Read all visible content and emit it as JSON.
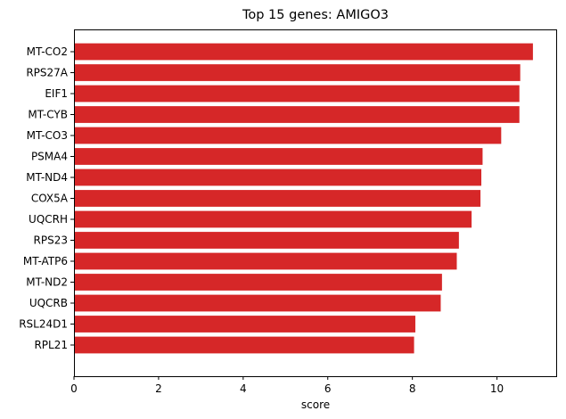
{
  "chart_data": {
    "type": "bar",
    "orientation": "horizontal",
    "title": "Top 15 genes: AMIGO3",
    "xlabel": "score",
    "ylabel": "",
    "xlim": [
      0,
      11.4
    ],
    "xticks": [
      0,
      2,
      4,
      6,
      8,
      10
    ],
    "grid": false,
    "bar_color": "#d62728",
    "categories": [
      "MT-CO2",
      "RPS27A",
      "EIF1",
      "MT-CYB",
      "MT-CO3",
      "PSMA4",
      "MT-ND4",
      "COX5A",
      "UQCRH",
      "RPS23",
      "MT-ATP6",
      "MT-ND2",
      "UQCRB",
      "RSL24D1",
      "RPL21"
    ],
    "values": [
      10.85,
      10.55,
      10.53,
      10.53,
      10.1,
      9.66,
      9.63,
      9.61,
      9.4,
      9.1,
      9.05,
      8.7,
      8.67,
      8.07,
      8.04
    ]
  }
}
